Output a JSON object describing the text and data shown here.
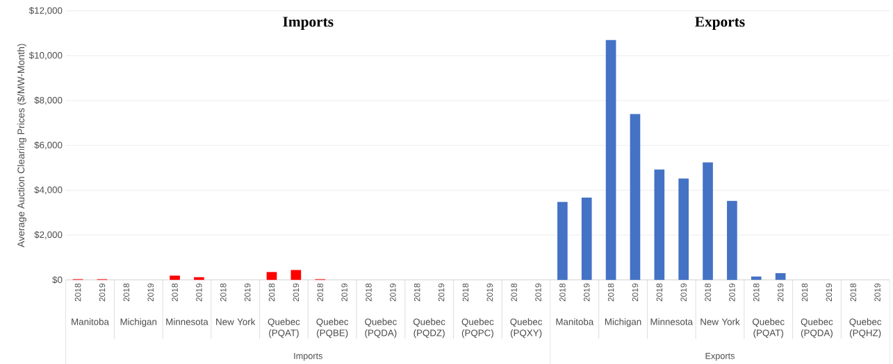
{
  "chart_data": {
    "type": "bar",
    "ylabel": "Average Auction Clearing Prices ($/MW-Month)",
    "categories": [
      "2018",
      "2019",
      "2018",
      "2019",
      "2018",
      "2019",
      "2018",
      "2019",
      "2018",
      "2019",
      "2018",
      "2019",
      "2018",
      "2019",
      "2018",
      "2019",
      "2018",
      "2019",
      "2018",
      "2019",
      "2018",
      "2019",
      "2018",
      "2019",
      "2018",
      "2019",
      "2018",
      "2019",
      "2018",
      "2019",
      "2018",
      "2019",
      "2018",
      "2019"
    ],
    "values": [
      30,
      30,
      0,
      0,
      190,
      120,
      0,
      0,
      350,
      440,
      30,
      0,
      0,
      0,
      0,
      0,
      0,
      0,
      0,
      0,
      3480,
      3670,
      10700,
      7400,
      4920,
      4520,
      5240,
      3520,
      150,
      300,
      0,
      0,
      0,
      0
    ],
    "colors": [
      "#ff0000",
      "#ff0000",
      "#ff0000",
      "#ff0000",
      "#ff0000",
      "#ff0000",
      "#ff0000",
      "#ff0000",
      "#ff0000",
      "#ff0000",
      "#ff0000",
      "#ff0000",
      "#ff0000",
      "#ff0000",
      "#ff0000",
      "#ff0000",
      "#ff0000",
      "#ff0000",
      "#ff0000",
      "#ff0000",
      "#4472c4",
      "#4472c4",
      "#4472c4",
      "#4472c4",
      "#4472c4",
      "#4472c4",
      "#4472c4",
      "#4472c4",
      "#4472c4",
      "#4472c4",
      "#4472c4",
      "#4472c4",
      "#4472c4",
      "#4472c4"
    ],
    "ylim": [
      0,
      12000
    ],
    "yticks": [
      {
        "value": 0,
        "label": "$0"
      },
      {
        "value": 2000,
        "label": "$2,000"
      },
      {
        "value": 4000,
        "label": "$4,000"
      },
      {
        "value": 6000,
        "label": "$6,000"
      },
      {
        "value": 8000,
        "label": "$8,000"
      },
      {
        "value": 10000,
        "label": "$10,000"
      },
      {
        "value": 12000,
        "label": "$12,000"
      }
    ],
    "grid": "y",
    "annotations": [
      "Imports",
      "Exports",
      "Manitoba",
      "Michigan",
      "Minnesota",
      "New York",
      "Quebec (PQAT)",
      "Quebec (PQBE)",
      "Quebec (PQDA)",
      "Quebec (PQDZ)",
      "Quebec (PQPC)",
      "Quebec (PQXY)",
      "Manitoba",
      "Michigan",
      "Minnesota",
      "New York",
      "Quebec (PQAT)",
      "Quebec (PQDA)",
      "Quebec (PQHZ)",
      "Imports",
      "Exports"
    ]
  }
}
